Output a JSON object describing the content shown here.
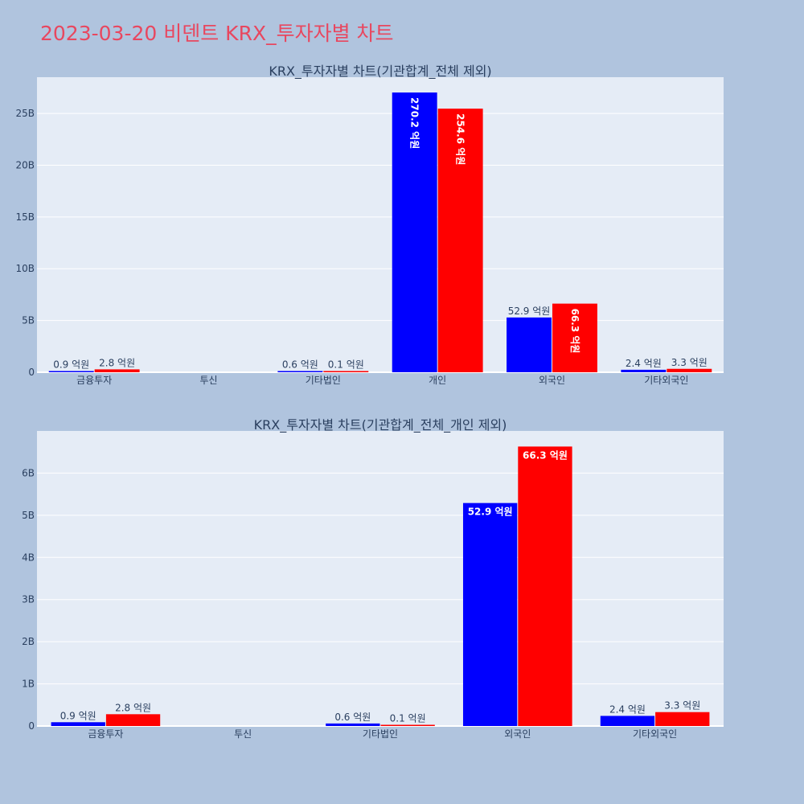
{
  "page": {
    "title": "2023-03-20 비덴트 KRX_투자자별 차트"
  },
  "colors": {
    "background": "#b0c4de",
    "plot_bg": "#e5ecf6",
    "series_1": "#0000ff",
    "series_2": "#ff0000",
    "title": "#e8475f",
    "text": "#2a3f5f"
  },
  "chart_data": [
    {
      "type": "bar",
      "title": "KRX_투자자별 차트(기관합계_전체 제외)",
      "categories": [
        "금융투자",
        "투신",
        "기타법인",
        "개인",
        "외국인",
        "기타외국인"
      ],
      "series": [
        {
          "values": [
            90000000,
            0,
            60000000,
            27020000000,
            5290000000,
            240000000
          ],
          "labels": [
            "0.9 억원",
            "",
            "0.6 억원",
            "270.2 억원",
            "52.9 억원",
            "2.4 억원"
          ]
        },
        {
          "values": [
            280000000,
            0,
            10000000,
            25460000000,
            6630000000,
            330000000
          ],
          "labels": [
            "2.8 억원",
            "",
            "0.1 억원",
            "254.6 억원",
            "66.3 억원",
            "3.3 억원"
          ]
        }
      ],
      "ylim": [
        0,
        28500000000
      ],
      "yticks": [
        0,
        5000000000,
        10000000000,
        15000000000,
        20000000000,
        25000000000
      ],
      "ytick_labels": [
        "0",
        "5B",
        "10B",
        "15B",
        "20B",
        "25B"
      ],
      "grid": true,
      "legend": "none"
    },
    {
      "type": "bar",
      "title": "KRX_투자자별 차트(기관합계_전체_개인 제외)",
      "categories": [
        "금융투자",
        "투신",
        "기타법인",
        "외국인",
        "기타외국인"
      ],
      "series": [
        {
          "values": [
            90000000,
            0,
            60000000,
            5290000000,
            240000000
          ],
          "labels": [
            "0.9 억원",
            "",
            "0.6 억원",
            "52.9 억원",
            "2.4 억원"
          ]
        },
        {
          "values": [
            280000000,
            0,
            10000000,
            6630000000,
            330000000
          ],
          "labels": [
            "2.8 억원",
            "",
            "0.1 억원",
            "66.3 억원",
            "3.3 억원"
          ]
        }
      ],
      "ylim": [
        0,
        7000000000
      ],
      "yticks": [
        0,
        1000000000,
        2000000000,
        3000000000,
        4000000000,
        5000000000,
        6000000000
      ],
      "ytick_labels": [
        "0",
        "1B",
        "2B",
        "3B",
        "4B",
        "5B",
        "6B"
      ],
      "grid": true,
      "legend": "none"
    }
  ]
}
